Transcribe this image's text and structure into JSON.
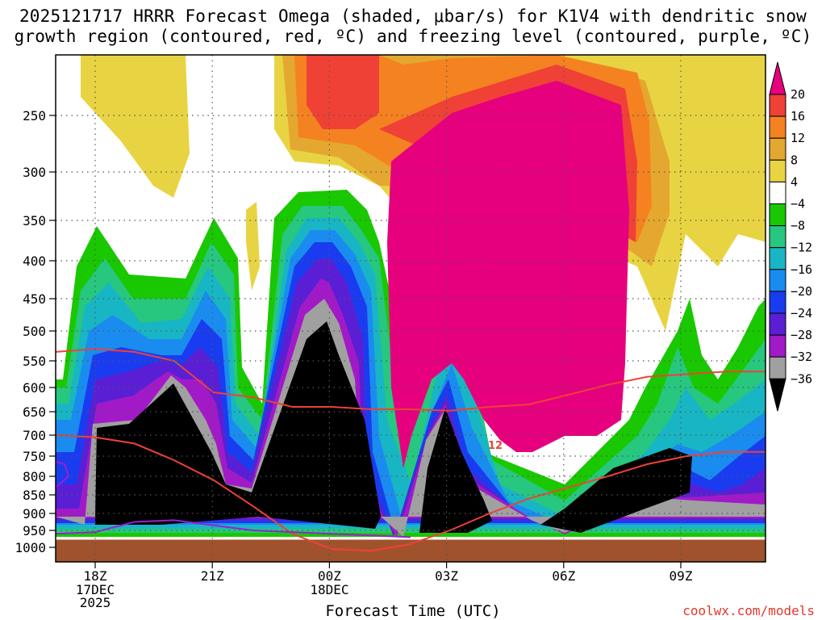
{
  "title": {
    "line1": "2025121717 HRRR Forecast Omega (shaded, μbar/s) for K1V4 with dendritic snow",
    "line2": "growth region (contoured, red, ºC) and freezing level (contoured, purple, ºC)"
  },
  "xlabel": "Forecast Time (UTC)",
  "credit": "coolwx.com/models",
  "chart_data": {
    "type": "heatmap",
    "title": "2025121717 HRRR Forecast Omega (shaded, μbar/s) for K1V4 with dendritic snow growth region (contoured, red, ºC) and freezing level (contoured, purple, ºC)",
    "xlabel": "Forecast Time (UTC)",
    "ylabel": "",
    "x_ticks": [
      {
        "label": "18Z",
        "sub": [
          "17DEC",
          "2025"
        ],
        "hour": 1
      },
      {
        "label": "21Z",
        "sub": [],
        "hour": 4
      },
      {
        "label": "00Z",
        "sub": [
          "18DEC"
        ],
        "hour": 7
      },
      {
        "label": "03Z",
        "sub": [],
        "hour": 10
      },
      {
        "label": "06Z",
        "sub": [],
        "hour": 13
      },
      {
        "label": "09Z",
        "sub": [],
        "hour": 16
      }
    ],
    "xlim": [
      0,
      18
    ],
    "y_ticks": [
      250,
      300,
      350,
      400,
      450,
      500,
      550,
      600,
      650,
      700,
      750,
      800,
      850,
      900,
      950,
      1000
    ],
    "ylim": [
      1020,
      200
    ],
    "ground_pressure": 975,
    "colorbar": {
      "labels": [
        "20",
        "16",
        "12",
        "8",
        "4",
        "−4",
        "−8",
        "−12",
        "−16",
        "−20",
        "−24",
        "−28",
        "−32",
        "−36"
      ],
      "colors": [
        "#e6007e",
        "#ef4136",
        "#f58220",
        "#e4a830",
        "#e8d442",
        "#ffffff",
        "#19c800",
        "#27c77f",
        "#18b6c4",
        "#1a8cf0",
        "#1a3cf0",
        "#5a1fd4",
        "#a21ac8",
        "#a0a0a0",
        "#000000"
      ]
    },
    "omega_regions": [
      {
        "name": "strong ascent (≤ -36)",
        "color": "#000000"
      },
      {
        "name": "strong subsidence (≥ 20)",
        "color": "#e6007e"
      }
    ],
    "contour_labels": [
      "12"
    ],
    "dgz_contours": [
      {
        "name": "-12C",
        "points": [
          [
            0,
            700
          ],
          [
            1,
            705
          ],
          [
            2,
            720
          ],
          [
            3,
            760
          ],
          [
            4,
            810
          ],
          [
            5,
            880
          ],
          [
            6,
            960
          ],
          [
            7,
            1005
          ],
          [
            8,
            1010
          ],
          [
            9,
            990
          ],
          [
            10,
            950
          ],
          [
            11,
            900
          ],
          [
            12,
            860
          ],
          [
            13,
            830
          ],
          [
            14,
            800
          ],
          [
            15,
            770
          ],
          [
            16,
            750
          ],
          [
            17,
            740
          ],
          [
            18,
            740
          ]
        ]
      },
      {
        "name": "dgz-top",
        "points": [
          [
            0,
            535
          ],
          [
            1,
            530
          ],
          [
            2,
            535
          ],
          [
            3,
            550
          ],
          [
            4,
            610
          ],
          [
            5,
            620
          ],
          [
            6,
            640
          ],
          [
            7,
            640
          ],
          [
            8,
            645
          ],
          [
            9,
            645
          ],
          [
            10,
            648
          ],
          [
            11,
            640
          ],
          [
            12,
            635
          ],
          [
            13,
            615
          ],
          [
            14,
            595
          ],
          [
            15,
            580
          ],
          [
            16,
            575
          ],
          [
            17,
            570
          ],
          [
            18,
            570
          ]
        ]
      }
    ],
    "freezing_contours": [
      {
        "name": "0C",
        "points": [
          [
            0,
            960
          ],
          [
            1,
            955
          ],
          [
            2,
            925
          ],
          [
            3,
            920
          ],
          [
            4,
            935
          ],
          [
            5,
            950
          ],
          [
            6,
            955
          ],
          [
            7,
            960
          ],
          [
            8,
            965
          ],
          [
            9,
            970
          ]
        ]
      }
    ]
  }
}
